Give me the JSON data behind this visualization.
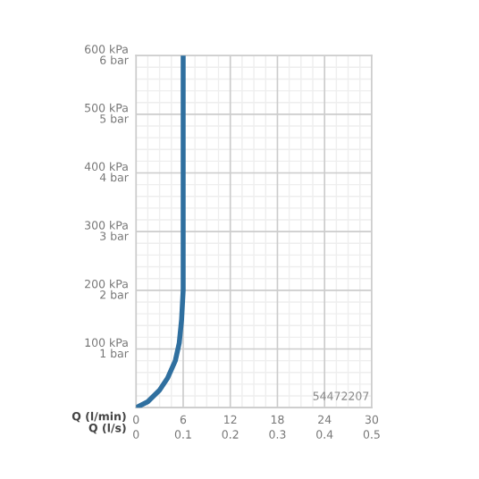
{
  "chart_data": {
    "type": "line",
    "xlabel": "Q (l/min)",
    "x2label": "Q (l/s)",
    "x": [
      0,
      1.5,
      3,
      4,
      5,
      5.5,
      5.8,
      6,
      6
    ],
    "series": [
      {
        "color": "#2f6f9f",
        "values": [
          0,
          10,
          30,
          50,
          80,
          110,
          150,
          200,
          600
        ]
      }
    ],
    "xlim": [
      0,
      30
    ],
    "xticks": [
      0,
      6,
      12,
      18,
      24,
      30
    ],
    "x2lim": [
      0,
      0.5
    ],
    "x2ticks": [
      0,
      0.1,
      0.2,
      0.3,
      0.4,
      0.5
    ],
    "ylim": [
      0,
      600
    ],
    "yticks": [
      {
        "value": 0,
        "label": null
      },
      {
        "value": 100,
        "label": "100 kPa"
      },
      {
        "value": 200,
        "label": "200 kPa"
      },
      {
        "value": 300,
        "label": "300 kPa"
      },
      {
        "value": 400,
        "label": "400 kPa"
      },
      {
        "value": 500,
        "label": "500 kPa"
      },
      {
        "value": 600,
        "label": "600 kPa"
      }
    ],
    "y2lim": [
      0,
      6
    ],
    "y2ticks": [
      {
        "value": 0,
        "label": null
      },
      {
        "value": 1,
        "label": "1 bar"
      },
      {
        "value": 2,
        "label": "2 bar"
      },
      {
        "value": 3,
        "label": "3 bar"
      },
      {
        "value": 4,
        "label": "4 bar"
      },
      {
        "value": 5,
        "label": "5 bar"
      },
      {
        "value": 6,
        "label": "6 bar"
      }
    ],
    "grid": true,
    "marker": "none",
    "line_style": "solid",
    "annotations": [
      "54472207"
    ]
  }
}
